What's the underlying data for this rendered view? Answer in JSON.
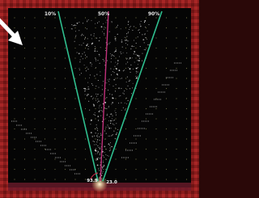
{
  "percentile_lines": [
    {
      "label": "10%"
    },
    {
      "label": "50%"
    },
    {
      "label": "90%"
    }
  ],
  "angle_labels": [
    "93.9",
    "23.0"
  ]
}
